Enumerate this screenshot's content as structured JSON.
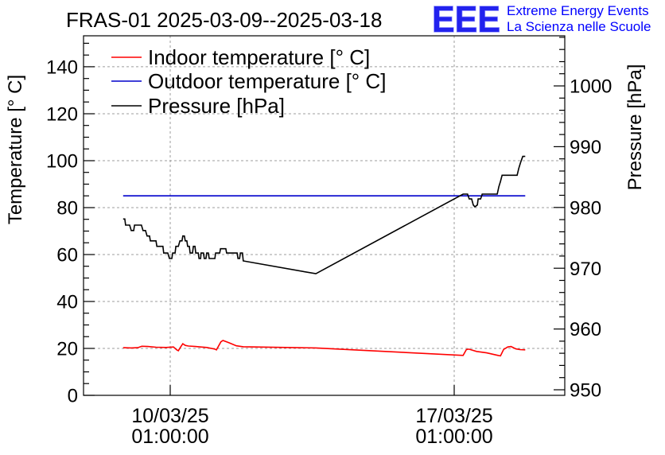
{
  "logo": {
    "mark": "EEE",
    "line1": "Extreme Energy Events",
    "line2": "La Scienza nelle Scuole"
  },
  "chart_data": {
    "type": "line",
    "title": "FRAS-01 2025-03-09--2025-03-18",
    "ylabel": "Temperature [° C]",
    "y2label": "Pressure [hPa]",
    "xlim": [
      -2.137,
      9.725
    ],
    "ylim": [
      0,
      153.2
    ],
    "y2lim": [
      949.08,
      1008.25
    ],
    "x_ticks": [
      {
        "value": 0,
        "label": [
          "10/03/25",
          "01:00:00"
        ]
      },
      {
        "value": 7,
        "label": [
          "17/03/25",
          "01:00:00"
        ]
      }
    ],
    "y_ticks": [
      0,
      20,
      40,
      60,
      80,
      100,
      120,
      140
    ],
    "y2_ticks": [
      950,
      960,
      970,
      980,
      990,
      1000
    ],
    "grid": true,
    "legend_position": "top-left",
    "series": [
      {
        "name": "Indoor temperature [° C]",
        "color": "#ff0000",
        "y_axis": 1,
        "points": [
          [
            -1.16,
            20.3
          ],
          [
            -0.96,
            20.2
          ],
          [
            -0.8,
            20.3
          ],
          [
            -0.7,
            20.9
          ],
          [
            -0.55,
            20.8
          ],
          [
            -0.35,
            20.5
          ],
          [
            -0.1,
            20.4
          ],
          [
            0.08,
            20.6
          ],
          [
            0.16,
            19.4
          ],
          [
            0.2,
            19.0
          ],
          [
            0.25,
            20.4
          ],
          [
            0.31,
            22.0
          ],
          [
            0.37,
            21.3
          ],
          [
            0.45,
            21.0
          ],
          [
            0.62,
            20.8
          ],
          [
            0.9,
            20.4
          ],
          [
            1.1,
            19.7
          ],
          [
            1.14,
            19.4
          ],
          [
            1.25,
            22.8
          ],
          [
            1.3,
            23.4
          ],
          [
            1.45,
            22.4
          ],
          [
            1.63,
            21.1
          ],
          [
            1.8,
            20.7
          ],
          [
            3.59,
            20.2
          ],
          [
            7.22,
            17.0
          ],
          [
            7.3,
            19.5
          ],
          [
            7.36,
            19.7
          ],
          [
            7.55,
            18.7
          ],
          [
            7.8,
            18.1
          ],
          [
            8.08,
            17.0
          ],
          [
            8.14,
            16.8
          ],
          [
            8.22,
            19.6
          ],
          [
            8.32,
            20.6
          ],
          [
            8.4,
            20.8
          ],
          [
            8.52,
            19.8
          ],
          [
            8.62,
            19.5
          ],
          [
            8.75,
            19.4
          ]
        ]
      },
      {
        "name": "Outdoor temperature [° C]",
        "color": "#0000cc",
        "y_axis": 1,
        "points": [
          [
            -1.16,
            85.0
          ],
          [
            8.75,
            85.0
          ]
        ]
      },
      {
        "name": "Pressure [hPa]",
        "color": "#000000",
        "y_axis": 2,
        "points": [
          [
            -1.16,
            978.1
          ],
          [
            -1.12,
            978.1
          ],
          [
            -1.1,
            977.1
          ],
          [
            -1.0,
            977.1
          ],
          [
            -0.96,
            976.2
          ],
          [
            -0.9,
            976.2
          ],
          [
            -0.88,
            977.1
          ],
          [
            -0.71,
            977.1
          ],
          [
            -0.67,
            976.2
          ],
          [
            -0.61,
            976.2
          ],
          [
            -0.57,
            975.3
          ],
          [
            -0.51,
            975.3
          ],
          [
            -0.49,
            974.5
          ],
          [
            -0.35,
            974.5
          ],
          [
            -0.33,
            973.6
          ],
          [
            -0.18,
            973.6
          ],
          [
            -0.16,
            972.5
          ],
          [
            -0.06,
            972.5
          ],
          [
            -0.02,
            971.6
          ],
          [
            0.04,
            971.6
          ],
          [
            0.06,
            972.5
          ],
          [
            0.12,
            972.5
          ],
          [
            0.14,
            973.6
          ],
          [
            0.2,
            973.6
          ],
          [
            0.24,
            974.5
          ],
          [
            0.29,
            974.5
          ],
          [
            0.31,
            975.3
          ],
          [
            0.35,
            975.3
          ],
          [
            0.37,
            974.5
          ],
          [
            0.41,
            974.5
          ],
          [
            0.43,
            973.6
          ],
          [
            0.47,
            973.6
          ],
          [
            0.49,
            972.5
          ],
          [
            0.55,
            972.5
          ],
          [
            0.57,
            973.6
          ],
          [
            0.61,
            973.6
          ],
          [
            0.63,
            972.5
          ],
          [
            0.69,
            972.5
          ],
          [
            0.71,
            971.6
          ],
          [
            0.75,
            971.6
          ],
          [
            0.76,
            972.5
          ],
          [
            0.82,
            972.5
          ],
          [
            0.84,
            971.6
          ],
          [
            0.88,
            971.6
          ],
          [
            0.9,
            972.5
          ],
          [
            0.94,
            972.5
          ],
          [
            0.96,
            971.6
          ],
          [
            1.1,
            971.6
          ],
          [
            1.12,
            972.5
          ],
          [
            1.22,
            972.5
          ],
          [
            1.24,
            973.2
          ],
          [
            1.37,
            973.2
          ],
          [
            1.39,
            972.5
          ],
          [
            1.65,
            972.5
          ],
          [
            1.67,
            971.6
          ],
          [
            1.71,
            971.6
          ],
          [
            1.73,
            972.5
          ],
          [
            1.78,
            972.5
          ],
          [
            1.8,
            971.2
          ],
          [
            3.59,
            969.1
          ],
          [
            7.22,
            982.2
          ],
          [
            7.33,
            982.2
          ],
          [
            7.37,
            981.4
          ],
          [
            7.43,
            981.4
          ],
          [
            7.47,
            980.4
          ],
          [
            7.51,
            980.1
          ],
          [
            7.57,
            980.4
          ],
          [
            7.59,
            981.4
          ],
          [
            7.65,
            981.4
          ],
          [
            7.69,
            982.2
          ],
          [
            8.06,
            982.2
          ],
          [
            8.1,
            983.4
          ],
          [
            8.14,
            984.3
          ],
          [
            8.18,
            985.3
          ],
          [
            8.55,
            985.3
          ],
          [
            8.59,
            986.4
          ],
          [
            8.63,
            987.3
          ],
          [
            8.69,
            988.4
          ],
          [
            8.75,
            988.4
          ]
        ]
      }
    ]
  }
}
